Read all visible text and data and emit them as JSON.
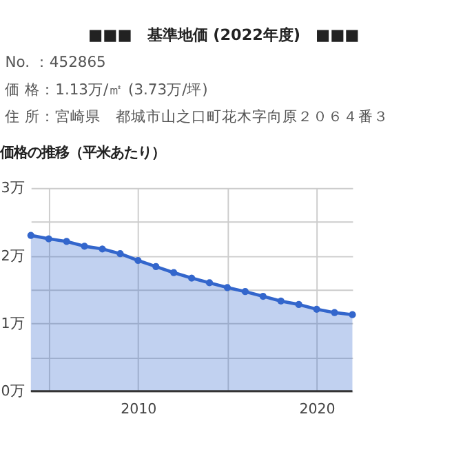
{
  "chart_data": {
    "type": "area",
    "title": "■■■　基準地価 (2022年度)　■■■",
    "subtitle": "価格の推移（平米あたり）",
    "annotations": [
      "No. ：452865",
      "価 格：1.13万/㎡ (3.73万/坪)",
      "住 所：宮崎県　都城市山之口町花木字向原２０６４番３"
    ],
    "x": [
      2004,
      2005,
      2006,
      2007,
      2008,
      2009,
      2010,
      2011,
      2012,
      2013,
      2014,
      2015,
      2016,
      2017,
      2018,
      2019,
      2020,
      2021,
      2022
    ],
    "series": [
      {
        "color": "#3366cc",
        "values": [
          2.3,
          2.25,
          2.21,
          2.14,
          2.1,
          2.03,
          1.93,
          1.84,
          1.75,
          1.67,
          1.6,
          1.53,
          1.47,
          1.4,
          1.33,
          1.28,
          1.21,
          1.16,
          1.13
        ]
      }
    ],
    "xlim": [
      2004,
      2022
    ],
    "xticks": [
      {
        "value": 2005,
        "label": null
      },
      2010,
      {
        "value": 2015,
        "label": null
      },
      2020
    ],
    "ylim": [
      0,
      3
    ],
    "yticks": [
      {
        "value": 0,
        "label": "0万"
      },
      {
        "value": 0.5,
        "label": null
      },
      {
        "value": 1,
        "label": "1万"
      },
      {
        "value": 1.5,
        "label": null
      },
      {
        "value": 2,
        "label": "2万"
      },
      {
        "value": 2.5,
        "label": null
      },
      {
        "value": 3,
        "label": "3万"
      }
    ],
    "grid": true,
    "marker": "circle",
    "line_style": "solid"
  }
}
